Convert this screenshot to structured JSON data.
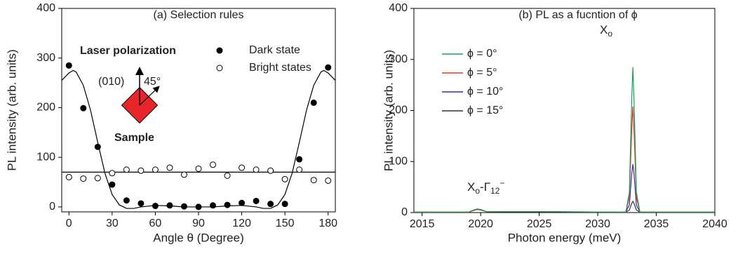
{
  "chart_data": [
    {
      "type": "scatter",
      "title": "(a) Selection rules",
      "xlabel": "Angle θ (Degree)",
      "ylabel": "PL intensity (arb. units)",
      "xlim": [
        -5,
        185
      ],
      "ylim": [
        -10,
        400
      ],
      "xticks": [
        0,
        30,
        60,
        90,
        120,
        150,
        180
      ],
      "yticks": [
        0,
        100,
        200,
        300,
        400
      ],
      "x": [
        0,
        10,
        20,
        30,
        40,
        50,
        60,
        70,
        80,
        90,
        100,
        110,
        120,
        130,
        140,
        150,
        160,
        170,
        180
      ],
      "series": [
        {
          "name": "Dark state",
          "color": "#000000",
          "marker": "filled",
          "values": [
            285,
            199,
            121,
            45,
            13,
            7,
            2,
            3,
            1,
            0,
            3,
            4,
            8,
            12,
            6,
            6,
            96,
            210,
            281
          ]
        },
        {
          "name": "Bright states",
          "color": "#000000",
          "marker": "open",
          "values": [
            60,
            57,
            58,
            68,
            75,
            73,
            75,
            79,
            65,
            77,
            85,
            63,
            79,
            75,
            73,
            56,
            75,
            54,
            53
          ]
        }
      ],
      "fits": [
        {
          "color": "#000000",
          "x": [
            -5,
            0,
            3,
            5,
            10,
            15,
            20,
            25,
            30,
            35,
            40,
            45,
            50,
            60,
            70,
            80,
            90,
            100,
            110,
            120,
            130,
            135,
            140,
            145,
            150,
            155,
            160,
            165,
            170,
            175,
            177,
            180,
            185
          ],
          "values": [
            255,
            270,
            275,
            272,
            245,
            195,
            130,
            68,
            25,
            4,
            -3,
            -3,
            0,
            3,
            2,
            0,
            0,
            0,
            2,
            3,
            0,
            -3,
            -3,
            4,
            25,
            68,
            130,
            195,
            245,
            272,
            275,
            270,
            255
          ]
        },
        {
          "color": "#000000",
          "x": [
            -5,
            185
          ],
          "values": [
            70,
            70
          ]
        }
      ],
      "annotations": [
        "Laser polarization",
        "(010)",
        "45°",
        "Sample"
      ],
      "sample_color": "#e8262a"
    },
    {
      "type": "line",
      "title": "(b) PL as a fucntion of ϕ",
      "xlabel": "Photon energy (meV)",
      "ylabel": "PL intensity (arb. units)",
      "xlim": [
        2014.3,
        2040
      ],
      "ylim": [
        0,
        400
      ],
      "xticks": [
        2015,
        2020,
        2025,
        2030,
        2035,
        2040
      ],
      "yticks": [
        0,
        100,
        200,
        300,
        400
      ],
      "x": [
        2014.3,
        2019,
        2019.4,
        2019.7,
        2020.0,
        2020.5,
        2032.4,
        2032.7,
        2032.9,
        2033.0,
        2033.1,
        2033.3,
        2033.6,
        2040
      ],
      "series": [
        {
          "name": "ϕ = 0°",
          "color": "#1aa05a",
          "values": [
            1,
            1,
            5,
            7,
            6,
            2,
            1,
            40,
            220,
            285,
            220,
            40,
            1,
            1
          ]
        },
        {
          "name": "ϕ = 5°",
          "color": "#e8322b",
          "values": [
            1,
            1,
            4,
            6,
            5,
            2,
            1,
            30,
            160,
            208,
            160,
            30,
            1,
            1
          ]
        },
        {
          "name": "ϕ = 10°",
          "color": "#3b2f9c",
          "values": [
            1,
            1,
            4,
            6,
            5,
            2,
            1,
            15,
            75,
            95,
            75,
            15,
            1,
            1
          ]
        },
        {
          "name": "ϕ = 15°",
          "color": "#333333",
          "values": [
            1,
            1,
            5,
            7,
            6,
            2,
            1,
            5,
            18,
            22,
            18,
            5,
            1,
            1
          ]
        }
      ],
      "annotations": [
        [
          {
            "text": "X"
          },
          {
            "text": "o",
            "shift": "sub"
          }
        ],
        [
          {
            "text": "X"
          },
          {
            "text": "o",
            "shift": "sub"
          },
          {
            "text": "-Γ"
          },
          {
            "text": "12",
            "shift": "sub"
          },
          {
            "text": "−",
            "shift": "super"
          }
        ]
      ]
    }
  ]
}
